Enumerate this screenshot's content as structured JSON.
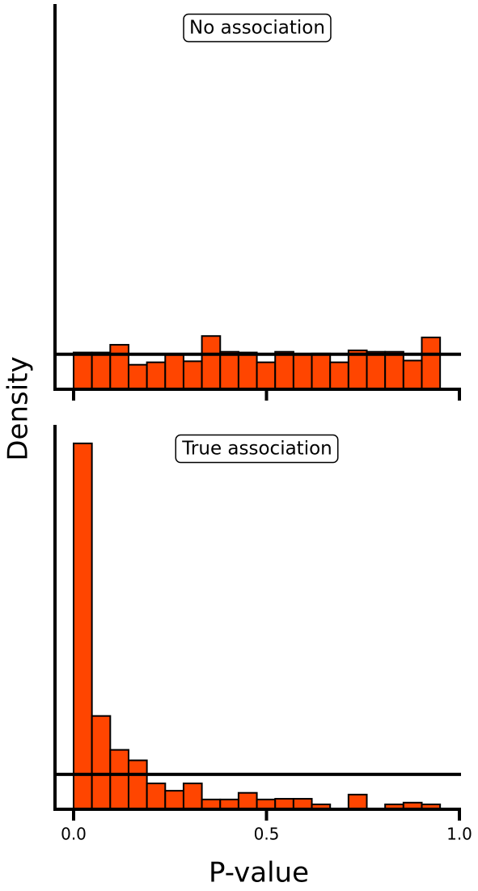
{
  "chart_data": [
    {
      "type": "histogram",
      "annotation": "No association",
      "ylabel": "Density",
      "color": "#ff4500",
      "bins": [
        0,
        0.0475,
        0.095,
        0.1425,
        0.19,
        0.2375,
        0.285,
        0.3325,
        0.38,
        0.4275,
        0.475,
        0.5225,
        0.57,
        0.6175,
        0.665,
        0.7125,
        0.76,
        0.8075,
        0.855,
        0.9025,
        0.95
      ],
      "counts": [
        1.05,
        1.05,
        1.27,
        0.7,
        0.77,
        0.98,
        0.8,
        1.52,
        1.07,
        1.05,
        0.77,
        1.07,
        1.0,
        1.02,
        0.77,
        1.11,
        1.07,
        1.07,
        0.82,
        1.48
      ],
      "reference_line": 1,
      "xlim": [
        0,
        1
      ],
      "ylim": [
        0,
        11
      ]
    },
    {
      "type": "histogram",
      "annotation": "True association",
      "xlabel": "P-value",
      "color": "#ff4500",
      "bins": [
        0,
        0.0475,
        0.095,
        0.1425,
        0.19,
        0.2375,
        0.285,
        0.3325,
        0.38,
        0.4275,
        0.475,
        0.5225,
        0.57,
        0.6175,
        0.665,
        0.7125,
        0.76,
        0.8075,
        0.855,
        0.9025,
        0.95
      ],
      "counts": [
        10.47,
        2.67,
        1.7,
        1.4,
        0.74,
        0.53,
        0.74,
        0.28,
        0.28,
        0.47,
        0.28,
        0.3,
        0.3,
        0.14,
        0,
        0.42,
        0,
        0.14,
        0.19,
        0.14
      ],
      "reference_line": 1,
      "xlim": [
        0,
        1
      ],
      "ylim": [
        0,
        11
      ],
      "xticks": [
        {
          "value": 0,
          "label": "0.0"
        },
        0.5,
        {
          "value": 1,
          "label": "1.0"
        }
      ]
    }
  ]
}
